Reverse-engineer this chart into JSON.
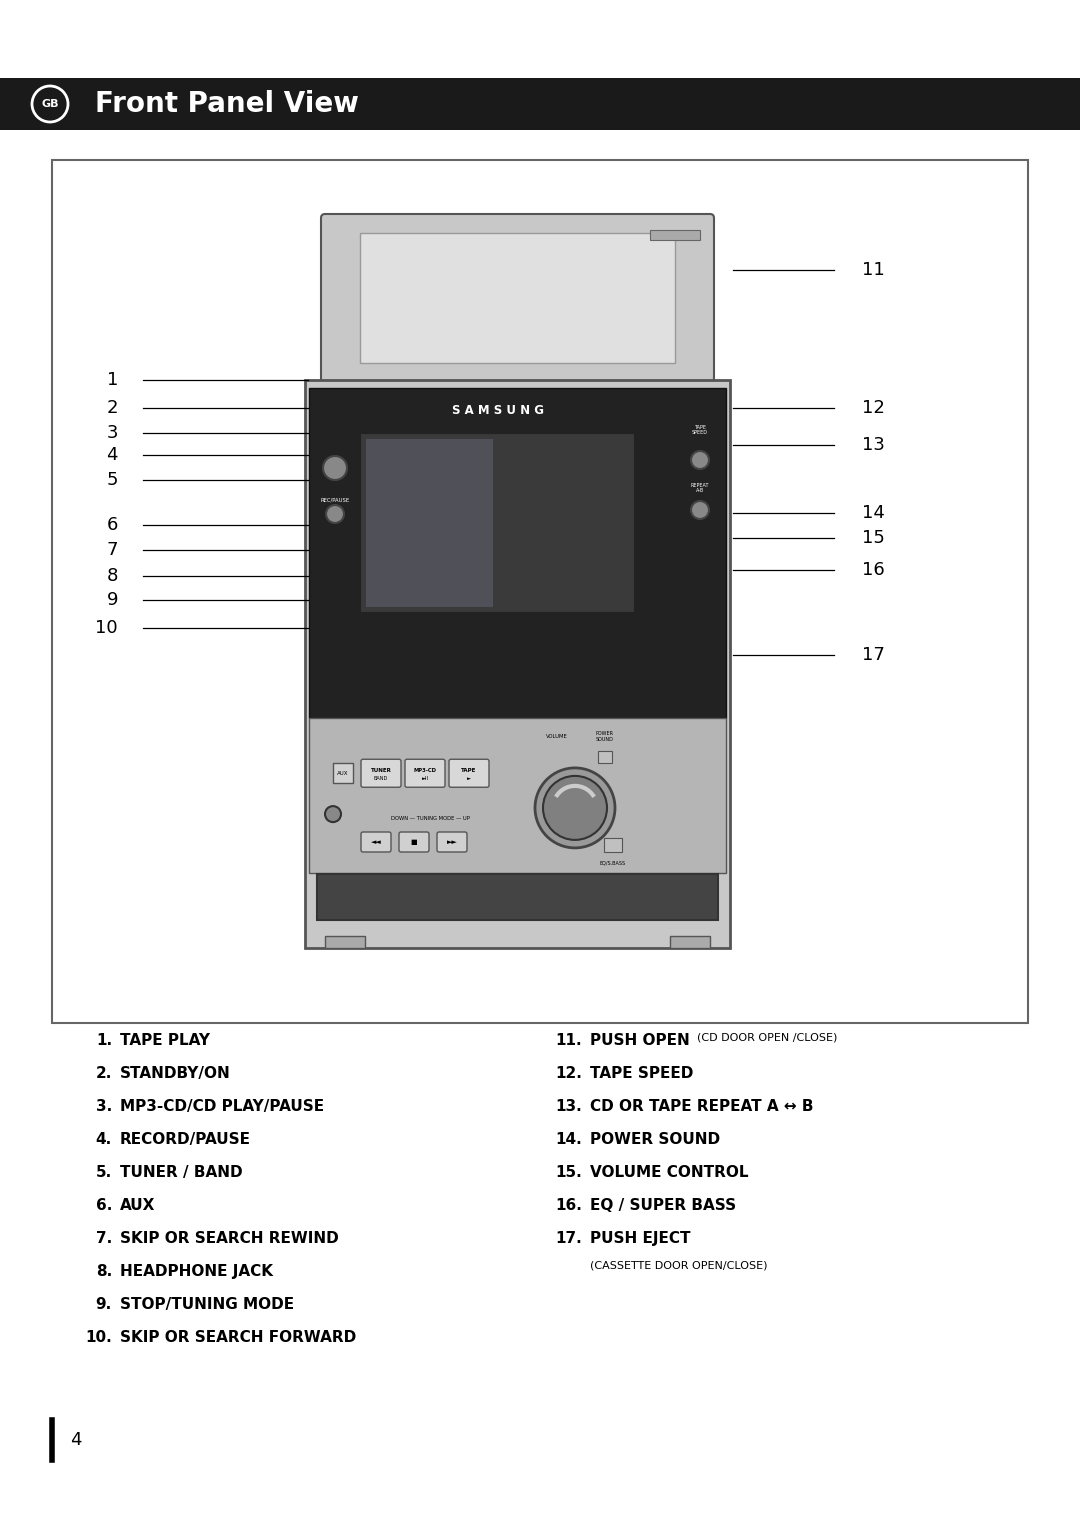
{
  "title": "Front Panel View",
  "bg_color": "#ffffff",
  "header_bg": "#1a1a1a",
  "header_text_color": "#ffffff",
  "header_title": "Front Panel View",
  "items_left": [
    {
      "num": "1.",
      "label": "TAPE PLAY"
    },
    {
      "num": "2.",
      "label": "STANDBY/ON"
    },
    {
      "num": "3.",
      "label": "MP3-CD/CD PLAY/PAUSE"
    },
    {
      "num": "4.",
      "label": "RECORD/PAUSE"
    },
    {
      "num": "5.",
      "label": "TUNER / BAND"
    },
    {
      "num": "6.",
      "label": "AUX"
    },
    {
      "num": "7.",
      "label": "SKIP OR SEARCH REWIND"
    },
    {
      "num": "8.",
      "label": "HEADPHONE JACK"
    },
    {
      "num": "9.",
      "label": "STOP/TUNING MODE"
    },
    {
      "num": "10.",
      "label": "SKIP OR SEARCH FORWARD"
    }
  ],
  "items_right": [
    {
      "num": "11.",
      "label": "PUSH OPEN",
      "sublabel": "(CD DOOR OPEN /CLOSE)"
    },
    {
      "num": "12.",
      "label": "TAPE SPEED",
      "sublabel": ""
    },
    {
      "num": "13.",
      "label": "CD OR TAPE REPEAT A ↔ B",
      "sublabel": ""
    },
    {
      "num": "14.",
      "label": "POWER SOUND",
      "sublabel": ""
    },
    {
      "num": "15.",
      "label": "VOLUME CONTROL",
      "sublabel": ""
    },
    {
      "num": "16.",
      "label": "EQ / SUPER BASS",
      "sublabel": ""
    },
    {
      "num": "17.",
      "label": "PUSH EJECT",
      "sublabel": "(CASSETTE DOOR OPEN/CLOSE)"
    }
  ],
  "page_number": "4",
  "device_body_color": "#c8c8c8",
  "device_dark_color": "#222222"
}
